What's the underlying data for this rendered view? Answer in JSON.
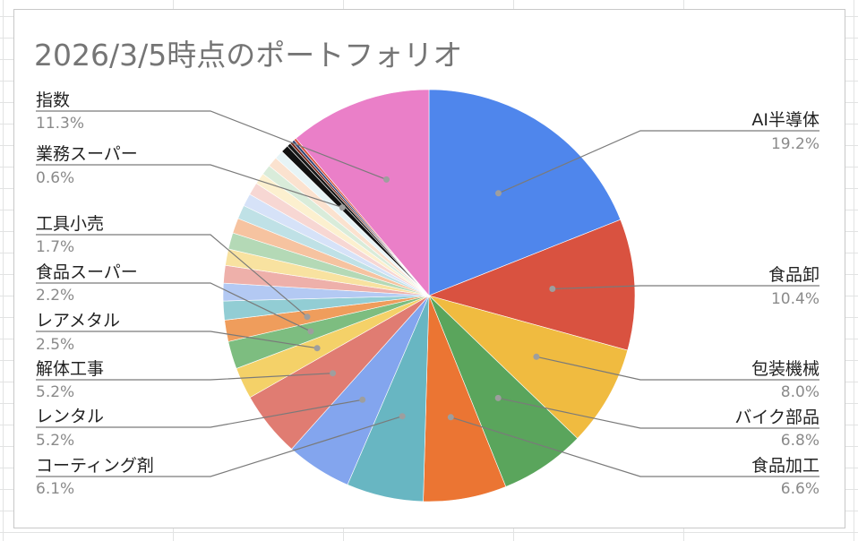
{
  "chart_data": {
    "type": "pie",
    "title": "2026/3/5時点のポートフォリオ",
    "legend": "callout-labels",
    "slices": [
      {
        "label": "AI半導体",
        "value": 19.2,
        "display": "19.2%",
        "color": "#4f86ec"
      },
      {
        "label": "食品卸",
        "value": 10.4,
        "display": "10.4%",
        "color": "#d95240"
      },
      {
        "label": "包装機械",
        "value": 8.0,
        "display": "8.0%",
        "color": "#f0bb40"
      },
      {
        "label": "バイク部品",
        "value": 6.8,
        "display": "6.8%",
        "color": "#5aa55c"
      },
      {
        "label": "食品加工",
        "value": 6.6,
        "display": "6.6%",
        "color": "#eb7533"
      },
      {
        "label": "コーティング剤",
        "value": 6.1,
        "display": "6.1%",
        "color": "#68b6c2"
      },
      {
        "label": "レンタル",
        "value": 5.2,
        "display": "5.2%",
        "color": "#83a5ee"
      },
      {
        "label": "解体工事",
        "value": 5.2,
        "display": "5.2%",
        "color": "#e07c72"
      },
      {
        "label": "レアメタル",
        "value": 2.5,
        "display": "2.5%",
        "color": "#f4d168"
      },
      {
        "label": "食品スーパー",
        "value": 2.2,
        "display": "2.2%",
        "color": "#7dbd80"
      },
      {
        "label": "工具小売",
        "value": 1.7,
        "display": "1.7%",
        "color": "#ef9d5c"
      },
      {
        "value": 1.5,
        "color": "#92cdd4"
      },
      {
        "value": 1.4,
        "color": "#b3c9f3"
      },
      {
        "value": 1.4,
        "color": "#eeb0aa"
      },
      {
        "value": 1.3,
        "color": "#f8e2a0"
      },
      {
        "value": 1.3,
        "color": "#b4d9b6"
      },
      {
        "value": 1.2,
        "color": "#f6c3a0"
      },
      {
        "value": 1.1,
        "color": "#bfe1e6"
      },
      {
        "value": 1.0,
        "color": "#d6e2f8"
      },
      {
        "value": 1.0,
        "color": "#f7d7d3"
      },
      {
        "value": 0.9,
        "color": "#fcf0cf"
      },
      {
        "value": 0.8,
        "color": "#d9ecda"
      },
      {
        "value": 0.8,
        "color": "#fbe2cf"
      },
      {
        "value": 0.7,
        "color": "#e7f4f6"
      },
      {
        "label": "業務スーパー",
        "value": 0.6,
        "display": "0.6%",
        "color": "#111111"
      },
      {
        "value": 0.3,
        "color": "#1a1a1a"
      },
      {
        "value": 0.2,
        "color": "#7a2a1e"
      },
      {
        "value": 0.2,
        "color": "#2b3f72"
      },
      {
        "value": 0.2,
        "color": "#d95240"
      },
      {
        "label": "指数",
        "value": 11.3,
        "display": "11.3%",
        "color": "#ea7fc8"
      }
    ]
  }
}
